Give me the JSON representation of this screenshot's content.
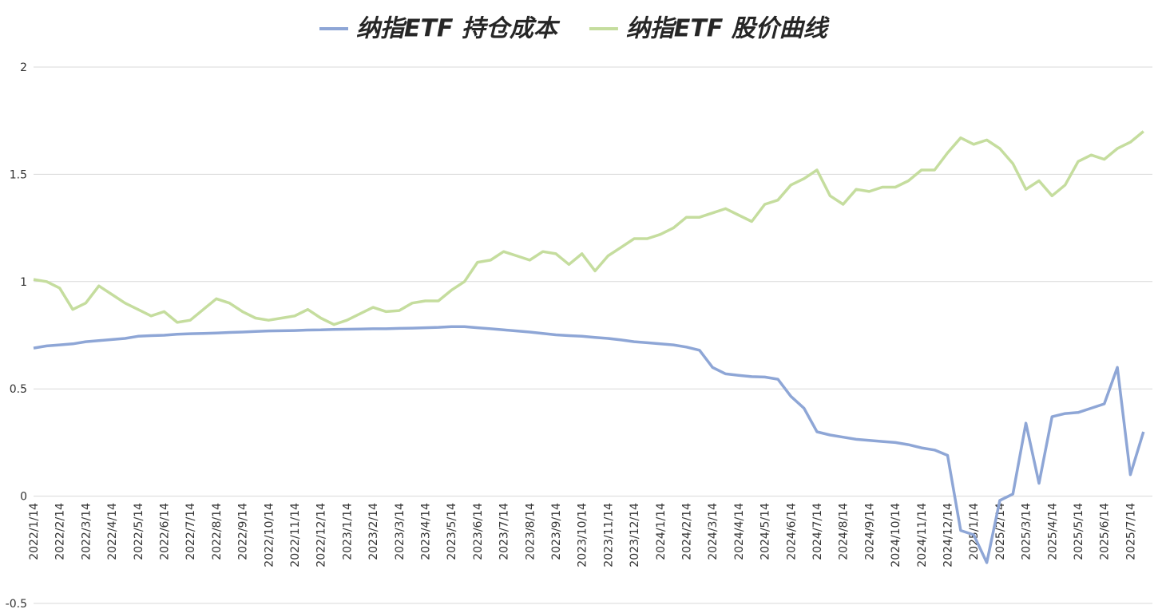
{
  "chart_data": {
    "type": "line",
    "categories": [
      "2022/1/14",
      null,
      "2022/2/14",
      null,
      "2022/3/14",
      null,
      "2022/4/14",
      null,
      "2022/5/14",
      null,
      "2022/6/14",
      null,
      "2022/7/14",
      null,
      "2022/8/14",
      null,
      "2022/9/14",
      null,
      "2022/10/14",
      null,
      "2022/11/14",
      null,
      "2022/12/14",
      null,
      "2023/1/14",
      null,
      "2023/2/14",
      null,
      "2023/3/14",
      null,
      "2023/4/14",
      null,
      "2023/5/14",
      null,
      "2023/6/14",
      null,
      "2023/7/14",
      null,
      "2023/8/14",
      null,
      "2023/9/14",
      null,
      "2023/10/14",
      null,
      "2023/11/14",
      null,
      "2023/12/14",
      null,
      "2024/1/14",
      null,
      "2024/2/14",
      null,
      "2024/3/14",
      null,
      "2024/4/14",
      null,
      "2024/5/14",
      null,
      "2024/6/14",
      null,
      "2024/7/14",
      null,
      "2024/8/14",
      null,
      "2024/9/14",
      null,
      "2024/10/14",
      null,
      "2024/11/14",
      null,
      "2024/12/14",
      null,
      "2025/1/14",
      null,
      "2025/2/14",
      null,
      "2025/3/14",
      null,
      "2025/4/14",
      null,
      "2025/5/14",
      null,
      "2025/6/14",
      null,
      "2025/7/14",
      null
    ],
    "series": [
      {
        "name": "纳指ETF 持仓成本",
        "color": "#8ea6d6",
        "values": [
          0.69,
          0.7,
          0.705,
          0.71,
          0.72,
          0.725,
          0.73,
          0.735,
          0.745,
          0.748,
          0.75,
          0.755,
          0.757,
          0.758,
          0.76,
          0.763,
          0.765,
          0.768,
          0.77,
          0.771,
          0.772,
          0.774,
          0.775,
          0.777,
          0.778,
          0.779,
          0.78,
          0.78,
          0.782,
          0.783,
          0.785,
          0.787,
          0.79,
          0.79,
          0.785,
          0.78,
          0.775,
          0.77,
          0.765,
          0.758,
          0.752,
          0.748,
          0.745,
          0.74,
          0.735,
          0.728,
          0.72,
          0.715,
          0.71,
          0.705,
          0.695,
          0.68,
          0.6,
          0.57,
          0.563,
          0.557,
          0.555,
          0.545,
          0.465,
          0.41,
          0.3,
          0.285,
          0.275,
          0.265,
          0.26,
          0.255,
          0.25,
          0.24,
          0.225,
          0.215,
          0.19,
          -0.16,
          -0.18,
          -0.31,
          -0.02,
          0.01,
          0.34,
          0.06,
          0.37,
          0.385,
          0.39,
          0.41,
          0.43,
          0.6,
          0.1,
          0.3
        ]
      },
      {
        "name": "纳指ETF 股价曲线",
        "color": "#c5dd9e",
        "values": [
          1.01,
          1.0,
          0.97,
          0.87,
          0.9,
          0.98,
          0.94,
          0.9,
          0.87,
          0.84,
          0.86,
          0.81,
          0.82,
          0.87,
          0.92,
          0.9,
          0.86,
          0.83,
          0.82,
          0.83,
          0.84,
          0.87,
          0.83,
          0.8,
          0.82,
          0.85,
          0.88,
          0.86,
          0.865,
          0.9,
          0.91,
          0.91,
          0.96,
          1.0,
          1.09,
          1.1,
          1.14,
          1.12,
          1.1,
          1.14,
          1.13,
          1.08,
          1.13,
          1.05,
          1.12,
          1.16,
          1.2,
          1.2,
          1.22,
          1.25,
          1.3,
          1.3,
          1.32,
          1.34,
          1.31,
          1.28,
          1.36,
          1.38,
          1.45,
          1.48,
          1.52,
          1.4,
          1.36,
          1.43,
          1.42,
          1.44,
          1.44,
          1.47,
          1.52,
          1.52,
          1.6,
          1.67,
          1.64,
          1.66,
          1.62,
          1.55,
          1.43,
          1.47,
          1.4,
          1.45,
          1.56,
          1.59,
          1.57,
          1.62,
          1.65,
          1.7
        ]
      }
    ],
    "ylim": [
      -0.5,
      2
    ],
    "yticks": [
      -0.5,
      0,
      0.5,
      1,
      1.5,
      2
    ],
    "grid": true,
    "legend": "top"
  }
}
